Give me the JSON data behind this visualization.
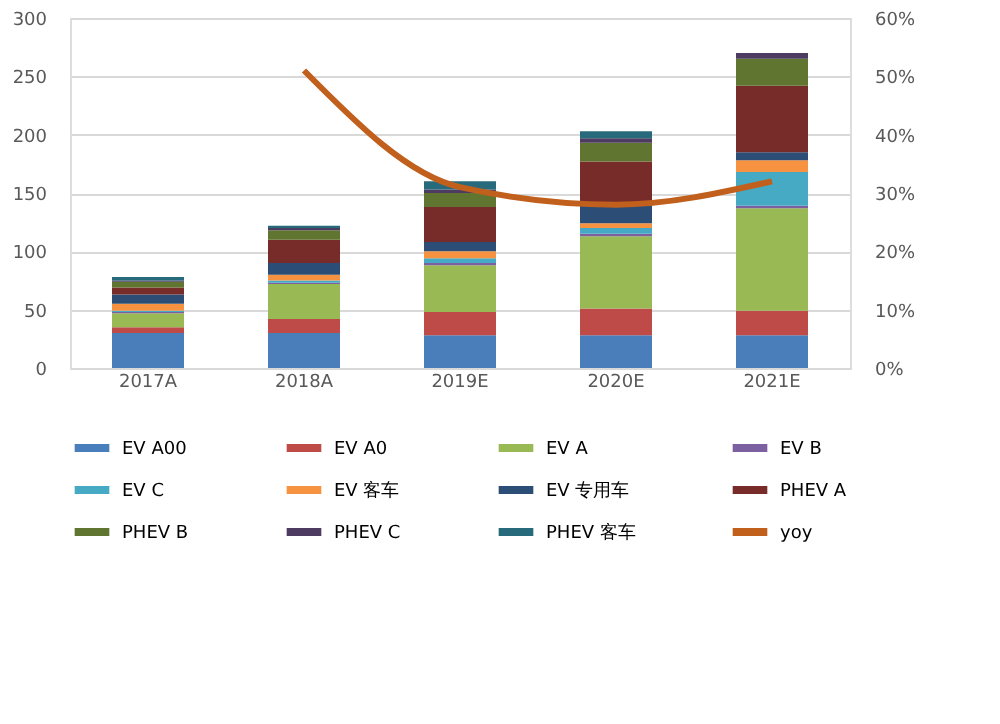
{
  "chart_data": {
    "type": "bar",
    "stacked": true,
    "categories": [
      "2017A",
      "2018A",
      "2019E",
      "2020E",
      "2021E"
    ],
    "series": [
      {
        "name": "EV A00",
        "color": "#4a7ebb",
        "values": [
          30,
          30,
          28,
          28,
          28
        ]
      },
      {
        "name": "EV A0",
        "color": "#be4b48",
        "values": [
          5,
          12,
          20,
          23,
          21
        ]
      },
      {
        "name": "EV A",
        "color": "#98b954",
        "values": [
          12,
          30,
          40,
          62,
          88
        ]
      },
      {
        "name": "EV B",
        "color": "#7d60a0",
        "values": [
          1,
          1,
          2,
          2,
          2
        ]
      },
      {
        "name": "EV C",
        "color": "#46aac5",
        "values": [
          1,
          2,
          4,
          5,
          29
        ]
      },
      {
        "name": "EV 客车",
        "color": "#f69240",
        "values": [
          6,
          5,
          6,
          4,
          10
        ]
      },
      {
        "name": "EV 专用车",
        "color": "#2c4d75",
        "values": [
          8,
          10,
          8,
          16,
          7
        ]
      },
      {
        "name": "PHEV A",
        "color": "#772c2a",
        "values": [
          6,
          20,
          30,
          37,
          57
        ]
      },
      {
        "name": "PHEV B",
        "color": "#5f7530",
        "values": [
          5,
          8,
          12,
          16,
          23
        ]
      },
      {
        "name": "PHEV C",
        "color": "#4d3b62",
        "values": [
          1,
          2,
          3,
          4,
          5
        ]
      },
      {
        "name": "PHEV 客车",
        "color": "#276a7c",
        "values": [
          3,
          2,
          7,
          6,
          0
        ]
      },
      {
        "name": "yoy",
        "color": "#c0601c",
        "type": "line",
        "axis": "y2",
        "values": [
          null,
          51,
          31,
          28,
          32
        ]
      }
    ],
    "ylim": [
      0,
      300
    ],
    "yticks": [
      0,
      50,
      100,
      150,
      200,
      250,
      300
    ],
    "y2lim": [
      0,
      60
    ],
    "y2ticks": [
      {
        "value": 0,
        "label": "0%"
      },
      {
        "value": 10,
        "label": "10%"
      },
      {
        "value": 20,
        "label": "20%"
      },
      {
        "value": 30,
        "label": "30%"
      },
      {
        "value": 40,
        "label": "40%"
      },
      {
        "value": 50,
        "label": "50%"
      },
      {
        "value": 60,
        "label": "60%"
      }
    ],
    "grid": "y",
    "legend": "bottom",
    "marker": "none",
    "line_style": "solid"
  }
}
